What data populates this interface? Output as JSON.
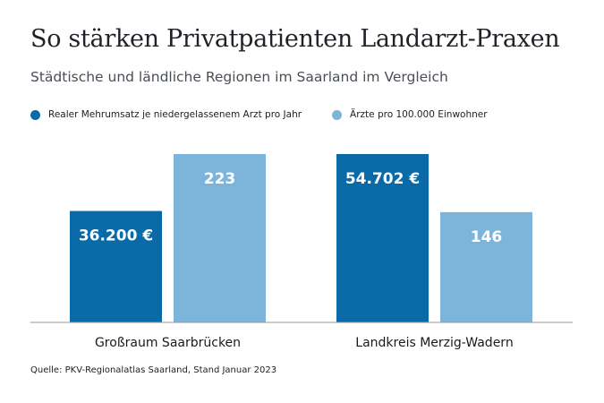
{
  "title": "So stärken Privatpatienten Landarzt-Praxen",
  "subtitle": "Städtische und ländliche Regionen im Saarland im Vergleich",
  "source": "Quelle: PKV-Regionalatlas Saarland, Stand Januar 2023",
  "chart_data": {
    "type": "bar",
    "categories": [
      "Großraum Saarbrücken",
      "Landkreis Merzig-Wadern"
    ],
    "series": [
      {
        "name": "Realer Mehrumsatz je niedergelassenem Arzt pro Jahr",
        "color": "#0a6aa8",
        "values": [
          36200,
          54702
        ],
        "labels": [
          "36.200 €",
          "54.702 €"
        ]
      },
      {
        "name": "Ärzte pro 100.000 Einwohner",
        "color": "#7cb5d9",
        "values": [
          223,
          146
        ],
        "labels": [
          "223",
          "146"
        ]
      }
    ],
    "legend": "top-left",
    "grid": false
  }
}
